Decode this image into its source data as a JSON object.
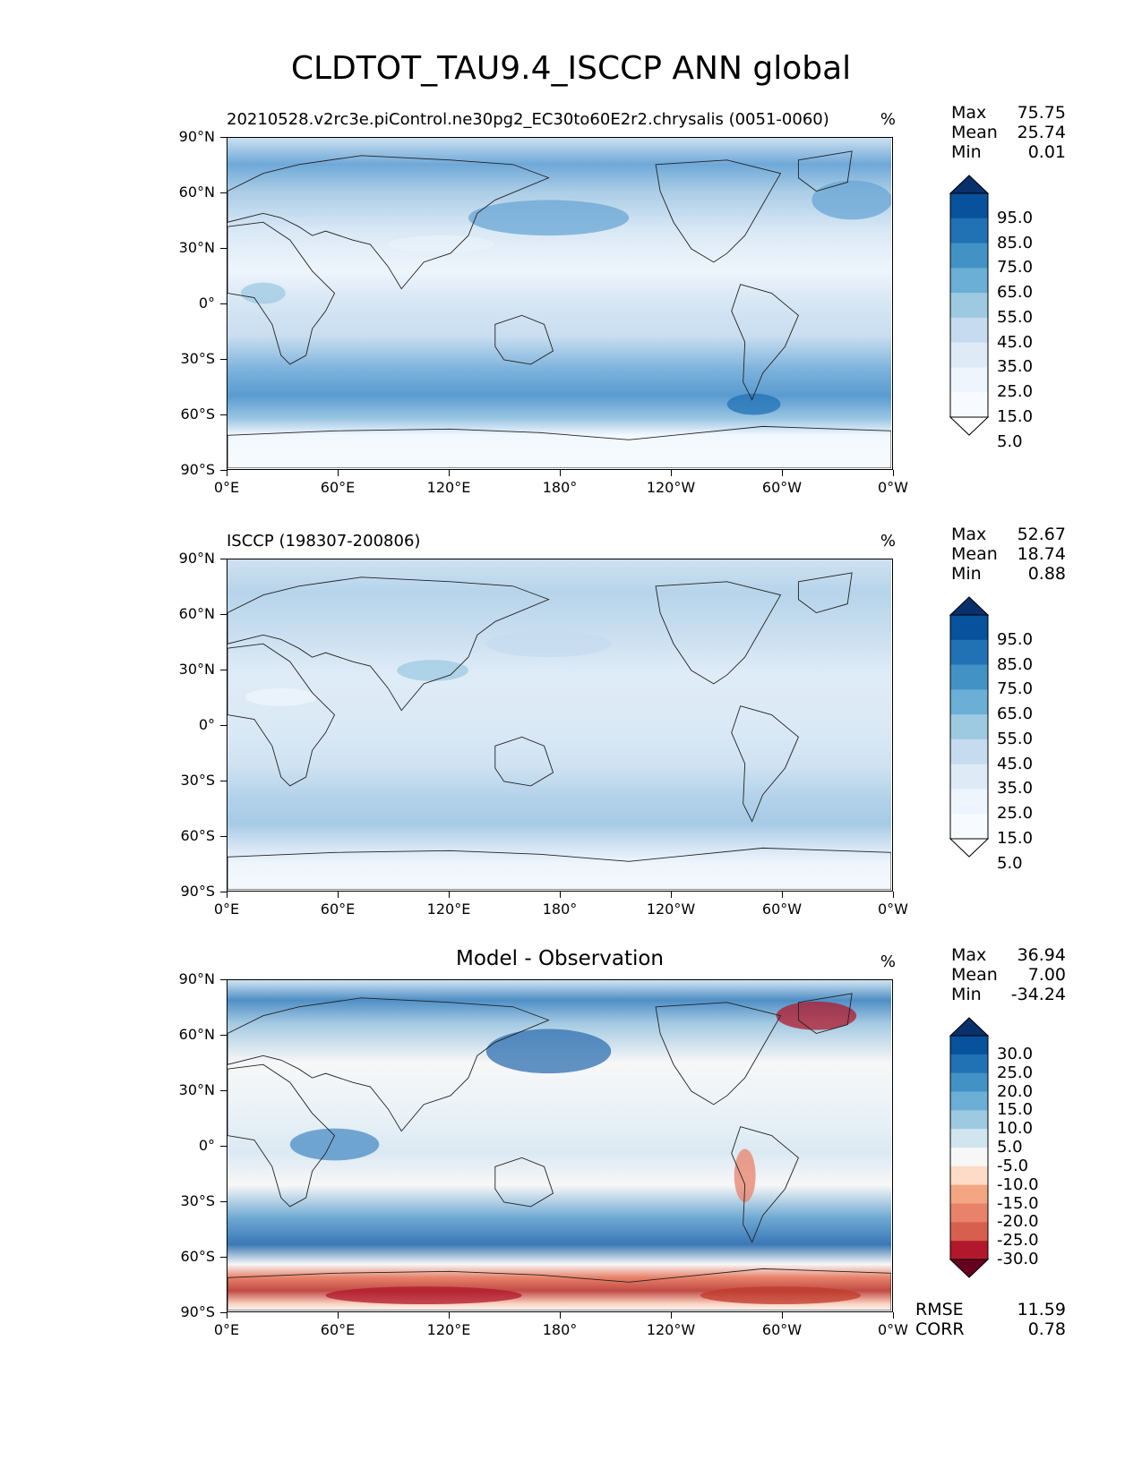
{
  "title": "CLDTOT_TAU9.4_ISCCP ANN global",
  "lat_ticks": [
    "90°N",
    "60°N",
    "30°N",
    "0°",
    "30°S",
    "60°S",
    "90°S"
  ],
  "lon_ticks": [
    "0°E",
    "60°E",
    "120°E",
    "180°",
    "120°W",
    "60°W",
    "0°W"
  ],
  "panels": [
    {
      "title_left": "20210528.v2rc3e.piControl.ne30pg2_EC30to60E2r2.chrysalis (0051-0060)",
      "title_center": "",
      "units": "%",
      "stats": {
        "max_label": "Max",
        "max": "75.75",
        "mean_label": "Mean",
        "mean": "25.74",
        "min_label": "Min",
        "min": "0.01"
      },
      "colorbar_labels": [
        "95.0",
        "85.0",
        "75.0",
        "65.0",
        "55.0",
        "45.0",
        "35.0",
        "25.0",
        "15.0",
        "5.0"
      ],
      "colorbar_colors": [
        "#08306b",
        "#08519c",
        "#2171b5",
        "#4292c6",
        "#6baed6",
        "#9ecae1",
        "#c6dbef",
        "#deebf7",
        "#eef5fc",
        "#f7fbff",
        "#ffffff"
      ]
    },
    {
      "title_left": "ISCCP (198307-200806)",
      "title_center": "",
      "units": "%",
      "stats": {
        "max_label": "Max",
        "max": "52.67",
        "mean_label": "Mean",
        "mean": "18.74",
        "min_label": "Min",
        "min": "0.88"
      },
      "colorbar_labels": [
        "95.0",
        "85.0",
        "75.0",
        "65.0",
        "55.0",
        "45.0",
        "35.0",
        "25.0",
        "15.0",
        "5.0"
      ],
      "colorbar_colors": [
        "#08306b",
        "#08519c",
        "#2171b5",
        "#4292c6",
        "#6baed6",
        "#9ecae1",
        "#c6dbef",
        "#deebf7",
        "#eef5fc",
        "#f7fbff",
        "#ffffff"
      ]
    },
    {
      "title_left": "",
      "title_center": "Model - Observation",
      "units": "%",
      "stats": {
        "max_label": "Max",
        "max": "36.94",
        "mean_label": "Mean",
        "mean": "7.00",
        "min_label": "Min",
        "min": "-34.24"
      },
      "colorbar_labels": [
        "30.0",
        "25.0",
        "20.0",
        "15.0",
        "10.0",
        "5.0",
        "-5.0",
        "-10.0",
        "-15.0",
        "-20.0",
        "-25.0",
        "-30.0"
      ],
      "colorbar_colors": [
        "#08306b",
        "#08519c",
        "#2171b5",
        "#4292c6",
        "#6baed6",
        "#9ecae1",
        "#d1e5f0",
        "#f7f7f7",
        "#fddbc7",
        "#f4a582",
        "#e8826a",
        "#d6604d",
        "#b2182b",
        "#67001f"
      ],
      "metrics": {
        "rmse_label": "RMSE",
        "rmse": "11.59",
        "corr_label": "CORR",
        "corr": "0.78"
      }
    }
  ],
  "chart_data": [
    {
      "type": "heatmap",
      "title": "20210528.v2rc3e.piControl.ne30pg2_EC30to60E2r2.chrysalis (0051-0060)",
      "units": "%",
      "x_range": [
        0,
        360
      ],
      "y_range": [
        -90,
        90
      ],
      "contour_levels": [
        5,
        15,
        25,
        35,
        45,
        55,
        65,
        75,
        85,
        95
      ],
      "stats": {
        "max": 75.75,
        "mean": 25.74,
        "min": 0.01
      }
    },
    {
      "type": "heatmap",
      "title": "ISCCP (198307-200806)",
      "units": "%",
      "x_range": [
        0,
        360
      ],
      "y_range": [
        -90,
        90
      ],
      "contour_levels": [
        5,
        15,
        25,
        35,
        45,
        55,
        65,
        75,
        85,
        95
      ],
      "stats": {
        "max": 52.67,
        "mean": 18.74,
        "min": 0.88
      }
    },
    {
      "type": "heatmap",
      "title": "Model - Observation",
      "units": "%",
      "x_range": [
        0,
        360
      ],
      "y_range": [
        -90,
        90
      ],
      "contour_levels": [
        -30,
        -25,
        -20,
        -15,
        -10,
        -5,
        5,
        10,
        15,
        20,
        25,
        30
      ],
      "stats": {
        "max": 36.94,
        "mean": 7.0,
        "min": -34.24,
        "rmse": 11.59,
        "corr": 0.78
      }
    }
  ]
}
